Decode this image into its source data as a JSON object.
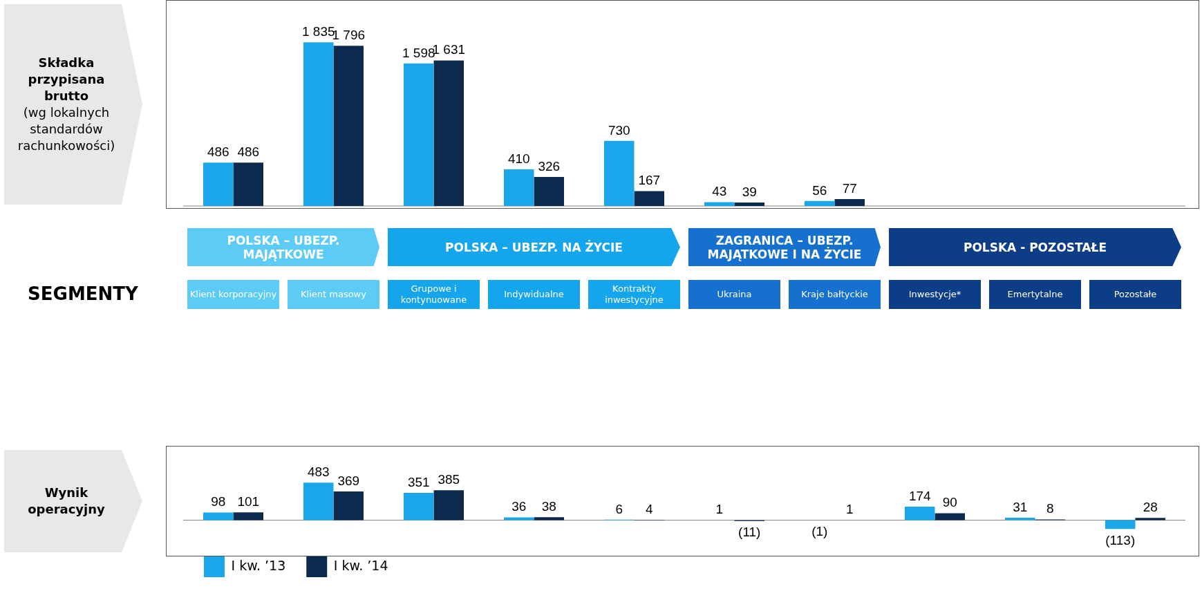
{
  "chart_data": [
    {
      "type": "bar",
      "title": "Składka przypisana brutto",
      "subtitle": "(wg lokalnych standardów rachunkowości)",
      "tick_labels": "x",
      "categories": [
        "Klient korporacyjny",
        "Klient masowy",
        "Grupowe i kontynuowane",
        "Indywidualne",
        "Kontrakty inwestycyjne",
        "Ukraina",
        "Kraje bałtyckie",
        "Inwestycje*",
        "Emertytalne",
        "Pozostałe"
      ],
      "series": [
        {
          "color": "#1ba6ea",
          "values": [
            486,
            1835,
            1598,
            410,
            730,
            43,
            56,
            null,
            null,
            null
          ],
          "value_labels": [
            "486",
            "1 835",
            "1 598",
            "410",
            "730",
            "43",
            "56",
            null,
            null,
            null
          ]
        },
        {
          "color": "#0b2a4e",
          "values": [
            486,
            1796,
            1631,
            326,
            167,
            39,
            77,
            null,
            null,
            null
          ],
          "value_labels": [
            "486",
            "1 796",
            "1 631",
            "326",
            "167",
            "39",
            "77",
            null,
            null,
            null
          ]
        }
      ]
    },
    {
      "type": "other",
      "title": "SEGMENTY",
      "annotations": [
        "POLSKA – UBEZP. MAJĄTKOWE",
        "POLSKA – UBEZP. NA ŻYCIE",
        "ZAGRANICA – UBEZP. MAJĄTKOWE I NA ŻYCIE",
        "POLSKA - POZOSTAŁE"
      ]
    },
    {
      "type": "bar",
      "title": "Wynik operacyjny",
      "categories": [
        null,
        null,
        null,
        null,
        null,
        null,
        null,
        null,
        null,
        null
      ],
      "legend": "bottom",
      "series": [
        {
          "name": "I kw. ’13",
          "color": "#1ba6ea",
          "values": [
            98,
            483,
            351,
            36,
            6,
            1,
            -1,
            174,
            31,
            -113
          ],
          "value_labels": [
            "98",
            "483",
            "351",
            "36",
            "6",
            "1",
            "(1)",
            "174",
            "31",
            "(113)"
          ]
        },
        {
          "name": "I kw. ’14",
          "color": "#0b2a4e",
          "values": [
            101,
            369,
            385,
            38,
            4,
            -11,
            1,
            90,
            8,
            28
          ],
          "value_labels": [
            "101",
            "369",
            "385",
            "38",
            "4",
            "(11)",
            "1",
            "90",
            "8",
            "28"
          ]
        }
      ]
    }
  ]
}
